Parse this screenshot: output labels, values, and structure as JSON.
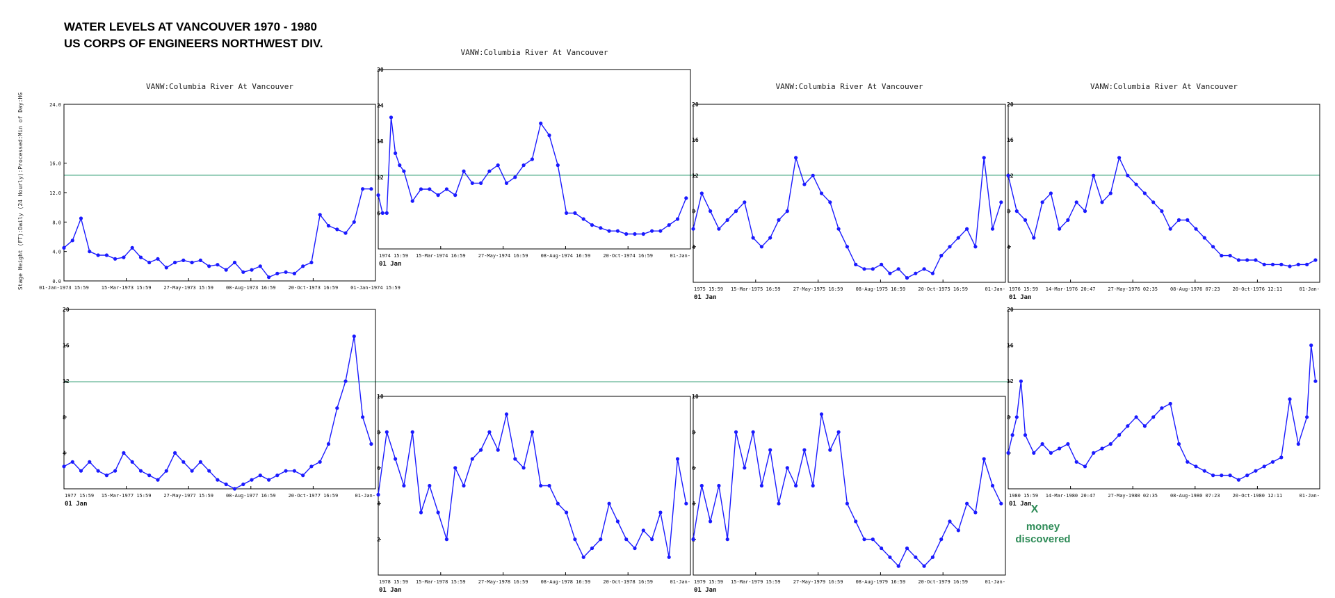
{
  "header": {
    "title_line1": "WATER LEVELS AT VANCOUVER 1970 - 1980",
    "title_line2": "US CORPS OF ENGINEERS NORTHWEST DIV."
  },
  "colors": {
    "series": "#1a1aff",
    "reference": "#3aa07a",
    "annotation": "#2e8b57"
  },
  "reference_line_label": "",
  "annotation": {
    "mark": "X",
    "line1": "money",
    "line2": "discovered"
  },
  "chart_data": [
    {
      "type": "line",
      "year": 1973,
      "title": "VANW:Columbia River At Vancouver",
      "ylabel": "Stage Height (FT):Daily (24 Hourly):Processed:Min of Day:HG",
      "ylim": [
        0,
        24
      ],
      "yticks": [
        "0.0",
        "4.0",
        "8.0",
        "12.0",
        "16.0",
        "24.0"
      ],
      "ytick_values": [
        0,
        4,
        8,
        12,
        16,
        24
      ],
      "xticks": [
        "01-Jan-1973 15:59",
        "15-Mar-1973 15:59",
        "27-May-1973 15:59",
        "08-Aug-1973 16:59",
        "20-Oct-1973 16:59",
        "01-Jan-1974 15:59"
      ],
      "jan_label": "",
      "reference": 12,
      "x": [
        0,
        10,
        20,
        30,
        40,
        50,
        60,
        70,
        80,
        90,
        100,
        110,
        120,
        130,
        140,
        150,
        160,
        170,
        180,
        190,
        200,
        210,
        220,
        230,
        240,
        250,
        260,
        270,
        280,
        290,
        300,
        310,
        320,
        330,
        340,
        350,
        360
      ],
      "y": [
        4.5,
        5.5,
        8.5,
        4.0,
        3.5,
        3.5,
        3.0,
        3.2,
        4.5,
        3.2,
        2.5,
        3.0,
        1.8,
        2.5,
        2.8,
        2.5,
        2.8,
        2.0,
        2.2,
        1.5,
        2.5,
        1.2,
        1.5,
        2.0,
        0.5,
        1.0,
        1.2,
        1.0,
        2.0,
        2.5,
        9.0,
        7.5,
        7.0,
        6.5,
        8.0,
        12.5,
        12.5
      ]
    },
    {
      "type": "line",
      "year": 1974,
      "title": "VANW:Columbia River At Vancouver",
      "ylim": [
        0,
        30
      ],
      "yticks": [
        "6",
        "12",
        "18",
        "24",
        "30"
      ],
      "ytick_values": [
        6,
        12,
        18,
        24,
        30
      ],
      "xticks": [
        "1974 15:59",
        "15-Mar-1974 16:59",
        "27-May-1974 16:59",
        "08-Aug-1974 16:59",
        "20-Oct-1974 16:59",
        "01-Jan-"
      ],
      "jan_label": "01 Jan",
      "reference": 12,
      "x": [
        0,
        5,
        10,
        15,
        20,
        25,
        30,
        40,
        50,
        60,
        70,
        80,
        90,
        100,
        110,
        120,
        130,
        140,
        150,
        160,
        170,
        180,
        190,
        200,
        210,
        220,
        230,
        240,
        250,
        260,
        270,
        280,
        290,
        300,
        310,
        320,
        330,
        340,
        350,
        360
      ],
      "y": [
        9,
        6,
        6,
        22,
        16,
        14,
        13,
        8,
        10,
        10,
        9,
        10,
        9,
        13,
        11,
        11,
        13,
        14,
        11,
        12,
        14,
        15,
        21,
        19,
        14,
        6,
        6,
        5,
        4,
        3.5,
        3,
        3,
        2.5,
        2.5,
        2.5,
        3,
        3,
        4,
        5,
        8.5
      ]
    },
    {
      "type": "line",
      "year": 1975,
      "title": "VANW:Columbia River At Vancouver",
      "ylim": [
        0,
        20
      ],
      "yticks": [
        "4",
        "8",
        "12",
        "16",
        "20"
      ],
      "ytick_values": [
        4,
        8,
        12,
        16,
        20
      ],
      "xticks": [
        "1975 15:59",
        "15-Mar-1975 16:59",
        "27-May-1975 16:59",
        "08-Aug-1975 16:59",
        "20-Oct-1975 16:59",
        "01-Jan-"
      ],
      "jan_label": "01 Jan",
      "reference": 12,
      "x": [
        0,
        10,
        20,
        30,
        40,
        50,
        60,
        70,
        80,
        90,
        100,
        110,
        120,
        130,
        140,
        150,
        160,
        170,
        180,
        190,
        200,
        210,
        220,
        230,
        240,
        250,
        260,
        270,
        280,
        290,
        300,
        310,
        320,
        330,
        340,
        350,
        360
      ],
      "y": [
        6,
        10,
        8,
        6,
        7,
        8,
        9,
        5,
        4,
        5,
        7,
        8,
        14,
        11,
        12,
        10,
        9,
        6,
        4,
        2,
        1.5,
        1.5,
        2,
        1,
        1.5,
        0.5,
        1,
        1.5,
        1,
        3,
        4,
        5,
        6,
        4,
        14,
        6,
        9
      ]
    },
    {
      "type": "line",
      "year": 1976,
      "title": "VANW:Columbia River At Vancouver",
      "ylim": [
        0,
        20
      ],
      "yticks": [
        "4",
        "8",
        "12",
        "16",
        "20"
      ],
      "ytick_values": [
        4,
        8,
        12,
        16,
        20
      ],
      "xticks": [
        "1976 15:59",
        "14-Mar-1976 20:47",
        "27-May-1976 02:35",
        "08-Aug-1976 07:23",
        "20-Oct-1976 12:11",
        "01-Jan-"
      ],
      "jan_label": "01 Jan",
      "reference": 12,
      "x": [
        0,
        10,
        20,
        30,
        40,
        50,
        60,
        70,
        80,
        90,
        100,
        110,
        120,
        130,
        140,
        150,
        160,
        170,
        180,
        190,
        200,
        210,
        220,
        230,
        240,
        250,
        260,
        270,
        280,
        290,
        300,
        310,
        320,
        330,
        340,
        350,
        360
      ],
      "y": [
        12,
        8,
        7,
        5,
        9,
        10,
        6,
        7,
        9,
        8,
        12,
        9,
        10,
        14,
        12,
        11,
        10,
        9,
        8,
        6,
        7,
        7,
        6,
        5,
        4,
        3,
        3,
        2.5,
        2.5,
        2.5,
        2,
        2,
        2,
        1.8,
        2,
        2,
        2.5
      ]
    },
    {
      "type": "line",
      "year": 1977,
      "title": "",
      "ylim": [
        0,
        20
      ],
      "yticks": [
        "4",
        "8",
        "12",
        "16",
        "20"
      ],
      "ytick_values": [
        4,
        8,
        12,
        16,
        20
      ],
      "xticks": [
        "1977 15:59",
        "15-Mar-1977 15:59",
        "27-May-1977 15:59",
        "08-Aug-1977 16:59",
        "20-Oct-1977 16:59",
        "01-Jan-"
      ],
      "jan_label": "01 Jan",
      "reference": 12,
      "x": [
        0,
        10,
        20,
        30,
        40,
        50,
        60,
        70,
        80,
        90,
        100,
        110,
        120,
        130,
        140,
        150,
        160,
        170,
        180,
        190,
        200,
        210,
        220,
        230,
        240,
        250,
        260,
        270,
        280,
        290,
        300,
        310,
        320,
        330,
        340,
        350,
        360
      ],
      "y": [
        2.5,
        3,
        2,
        3,
        2,
        1.5,
        2,
        4,
        3,
        2,
        1.5,
        1,
        2,
        4,
        3,
        2,
        3,
        2,
        1,
        0.5,
        0,
        0.5,
        1,
        1.5,
        1,
        1.5,
        2,
        2,
        1.5,
        2.5,
        3,
        5,
        9,
        12,
        17,
        8,
        5
      ]
    },
    {
      "type": "line",
      "year": 1978,
      "title": "",
      "ylim": [
        0,
        10
      ],
      "yticks": [
        "2",
        "4",
        "6",
        "8",
        "10"
      ],
      "ytick_values": [
        2,
        4,
        6,
        8,
        10
      ],
      "xticks": [
        "1978 15:59",
        "15-Mar-1978 15:59",
        "27-May-1978 16:59",
        "08-Aug-1978 16:59",
        "20-Oct-1978 16:59",
        "01-Jan-"
      ],
      "jan_label": "01 Jan",
      "reference": null,
      "x": [
        0,
        10,
        20,
        30,
        40,
        50,
        60,
        70,
        80,
        90,
        100,
        110,
        120,
        130,
        140,
        150,
        160,
        170,
        180,
        190,
        200,
        210,
        220,
        230,
        240,
        250,
        260,
        270,
        280,
        290,
        300,
        310,
        320,
        330,
        340,
        350,
        360
      ],
      "y": [
        4.5,
        8,
        6.5,
        5,
        8,
        3.5,
        5,
        3.5,
        2,
        6,
        5,
        6.5,
        7,
        8,
        7,
        9,
        6.5,
        6,
        8,
        5,
        5,
        4,
        3.5,
        2,
        1,
        1.5,
        2,
        4,
        3,
        2,
        1.5,
        2.5,
        2,
        3.5,
        1,
        6.5,
        4
      ]
    },
    {
      "type": "line",
      "year": 1979,
      "title": "",
      "ylim": [
        0,
        10
      ],
      "yticks": [
        "2",
        "4",
        "6",
        "8",
        "10"
      ],
      "ytick_values": [
        2,
        4,
        6,
        8,
        10
      ],
      "xticks": [
        "1979 15:59",
        "15-Mar-1979 15:59",
        "27-May-1979 16:59",
        "08-Aug-1979 16:59",
        "20-Oct-1979 16:59",
        "01-Jan-"
      ],
      "jan_label": "01 Jan",
      "reference": null,
      "x": [
        0,
        10,
        20,
        30,
        40,
        50,
        60,
        70,
        80,
        90,
        100,
        110,
        120,
        130,
        140,
        150,
        160,
        170,
        180,
        190,
        200,
        210,
        220,
        230,
        240,
        250,
        260,
        270,
        280,
        290,
        300,
        310,
        320,
        330,
        340,
        350,
        360
      ],
      "y": [
        2,
        5,
        3,
        5,
        2,
        8,
        6,
        8,
        5,
        7,
        4,
        6,
        5,
        7,
        5,
        9,
        7,
        8,
        4,
        3,
        2,
        2,
        1.5,
        1,
        0.5,
        1.5,
        1,
        0.5,
        1,
        2,
        3,
        2.5,
        4,
        3.5,
        6.5,
        5,
        4
      ]
    },
    {
      "type": "line",
      "year": 1980,
      "title": "",
      "ylim": [
        0,
        20
      ],
      "yticks": [
        "4",
        "8",
        "12",
        "16",
        "20"
      ],
      "ytick_values": [
        4,
        8,
        12,
        16,
        20
      ],
      "xticks": [
        "1980 15:59",
        "14-Mar-1980 20:47",
        "27-May-1980 02:35",
        "08-Aug-1980 07:23",
        "20-Oct-1980 12:11",
        "01-Jan-"
      ],
      "jan_label": "01 Jan",
      "reference": null,
      "x": [
        0,
        5,
        10,
        15,
        20,
        30,
        40,
        50,
        60,
        70,
        80,
        90,
        100,
        110,
        120,
        130,
        140,
        150,
        160,
        170,
        180,
        190,
        200,
        210,
        220,
        230,
        240,
        250,
        260,
        270,
        280,
        290,
        300,
        310,
        320,
        330,
        340,
        350,
        355,
        360
      ],
      "y": [
        4,
        6,
        8,
        12,
        6,
        4,
        5,
        4,
        4.5,
        5,
        3,
        2.5,
        4,
        4.5,
        5,
        6,
        7,
        8,
        7,
        8,
        9,
        9.5,
        5,
        3,
        2.5,
        2,
        1.5,
        1.5,
        1.5,
        1,
        1.5,
        2,
        2.5,
        3,
        3.5,
        10,
        5,
        8,
        16,
        12
      ]
    }
  ]
}
